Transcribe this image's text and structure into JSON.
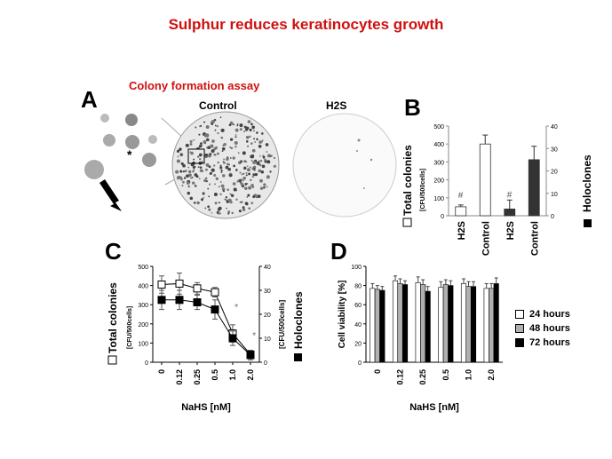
{
  "title": "Sulphur reduces keratinocytes growth",
  "panel_a": {
    "letter": "A",
    "subtitle": "Colony formation assay",
    "control_label": "Control",
    "h2s_label": "H2S",
    "asterisk": "*"
  },
  "chart_data": [
    {
      "panel": "B",
      "type": "bar",
      "categories": [
        "H2S",
        "Control",
        "H2S",
        "Control"
      ],
      "series": [
        {
          "name": "Total colonies",
          "axis": "left",
          "values": [
            50,
            400,
            null,
            null
          ],
          "errors": [
            10,
            50,
            null,
            null
          ],
          "color": "#ffffff"
        },
        {
          "name": "Holoclones",
          "axis": "right",
          "values": [
            null,
            null,
            3,
            25
          ],
          "errors": [
            null,
            null,
            4,
            6
          ],
          "color": "#333333"
        }
      ],
      "annotations": [
        "#",
        "#"
      ],
      "ylabel_left": "Total colonies",
      "ylabel_left_unit": "[CFU/500cells]",
      "ylabel_right": "Holoclones",
      "ylim_left": [
        0,
        500
      ],
      "yticks_left": [
        "0",
        "100",
        "200",
        "300",
        "400",
        "500"
      ],
      "ylim_right": [
        0,
        40
      ],
      "yticks_right": [
        "0",
        "10",
        "20",
        "30",
        "40"
      ]
    },
    {
      "panel": "C",
      "type": "line",
      "x": [
        "0",
        "0.12",
        "0.25",
        "0.5",
        "1.0",
        "2.0"
      ],
      "series": [
        {
          "name": "Total colonies",
          "axis": "left",
          "marker": "open-square",
          "values": [
            405,
            410,
            385,
            365,
            150,
            40
          ],
          "errors": [
            45,
            55,
            30,
            25,
            45,
            20
          ]
        },
        {
          "name": "Holoclones",
          "axis": "right",
          "marker": "filled-square",
          "values": [
            26,
            26,
            25,
            22,
            10,
            3
          ],
          "errors": [
            4,
            4,
            3,
            4,
            3,
            2
          ]
        }
      ],
      "annotations": [
        "*",
        "*"
      ],
      "xlabel": "NaHS [nM]",
      "ylabel_left": "Total colonies",
      "ylabel_left_unit": "[CFU/500cells]",
      "ylabel_right": "Holoclones",
      "ylabel_right_unit": "[CFU/500cells]",
      "ylim_left": [
        0,
        500
      ],
      "yticks_left": [
        "0",
        "100",
        "200",
        "300",
        "400",
        "500"
      ],
      "ylim_right": [
        0,
        40
      ],
      "yticks_right": [
        "0",
        "10",
        "20",
        "30",
        "40"
      ]
    },
    {
      "panel": "D",
      "type": "bar",
      "categories": [
        "0",
        "0.12",
        "0.25",
        "0.5",
        "1.0",
        "2.0"
      ],
      "series": [
        {
          "name": "24 hours",
          "values": [
            77,
            85,
            83,
            78,
            82,
            77
          ],
          "errors": [
            5,
            5,
            6,
            6,
            5,
            5
          ],
          "color": "#ffffff"
        },
        {
          "name": "48 hours",
          "values": [
            76,
            82,
            81,
            81,
            79,
            77
          ],
          "errors": [
            4,
            5,
            5,
            5,
            5,
            5
          ],
          "color": "#b0b0b0"
        },
        {
          "name": "72 hours",
          "values": [
            75,
            81,
            74,
            80,
            79,
            82
          ],
          "errors": [
            4,
            4,
            5,
            5,
            5,
            6
          ],
          "color": "#000000"
        }
      ],
      "xlabel": "NaHS [nM]",
      "ylabel": "Cell viability [%]",
      "ylim": [
        0,
        100
      ],
      "yticks": [
        "0",
        "20",
        "40",
        "60",
        "80",
        "100"
      ]
    }
  ],
  "colors": {
    "title_red": "#d01010",
    "dark_bar": "#333333",
    "gray_bar": "#b0b0b0"
  }
}
